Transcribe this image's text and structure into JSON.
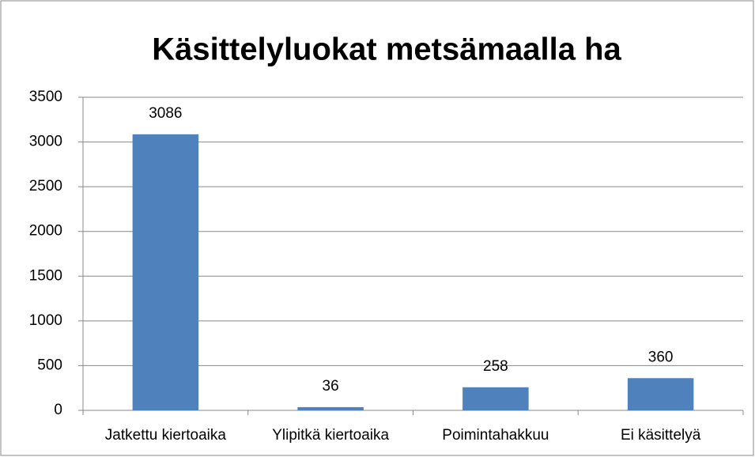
{
  "chart_data": {
    "type": "bar",
    "title": "Käsittelyluokat metsämaalla ha",
    "categories": [
      "Jatkettu kiertoaika",
      "Ylipitkä kiertoaika",
      "Poimintahakkuu",
      "Ei käsittelyä"
    ],
    "values": [
      3086,
      36,
      258,
      360
    ],
    "color": "#4f81bd",
    "ylim": [
      0,
      3500
    ],
    "yticks": [
      0,
      500,
      1000,
      1500,
      2000,
      2500,
      3000,
      3500
    ],
    "grid": true
  }
}
